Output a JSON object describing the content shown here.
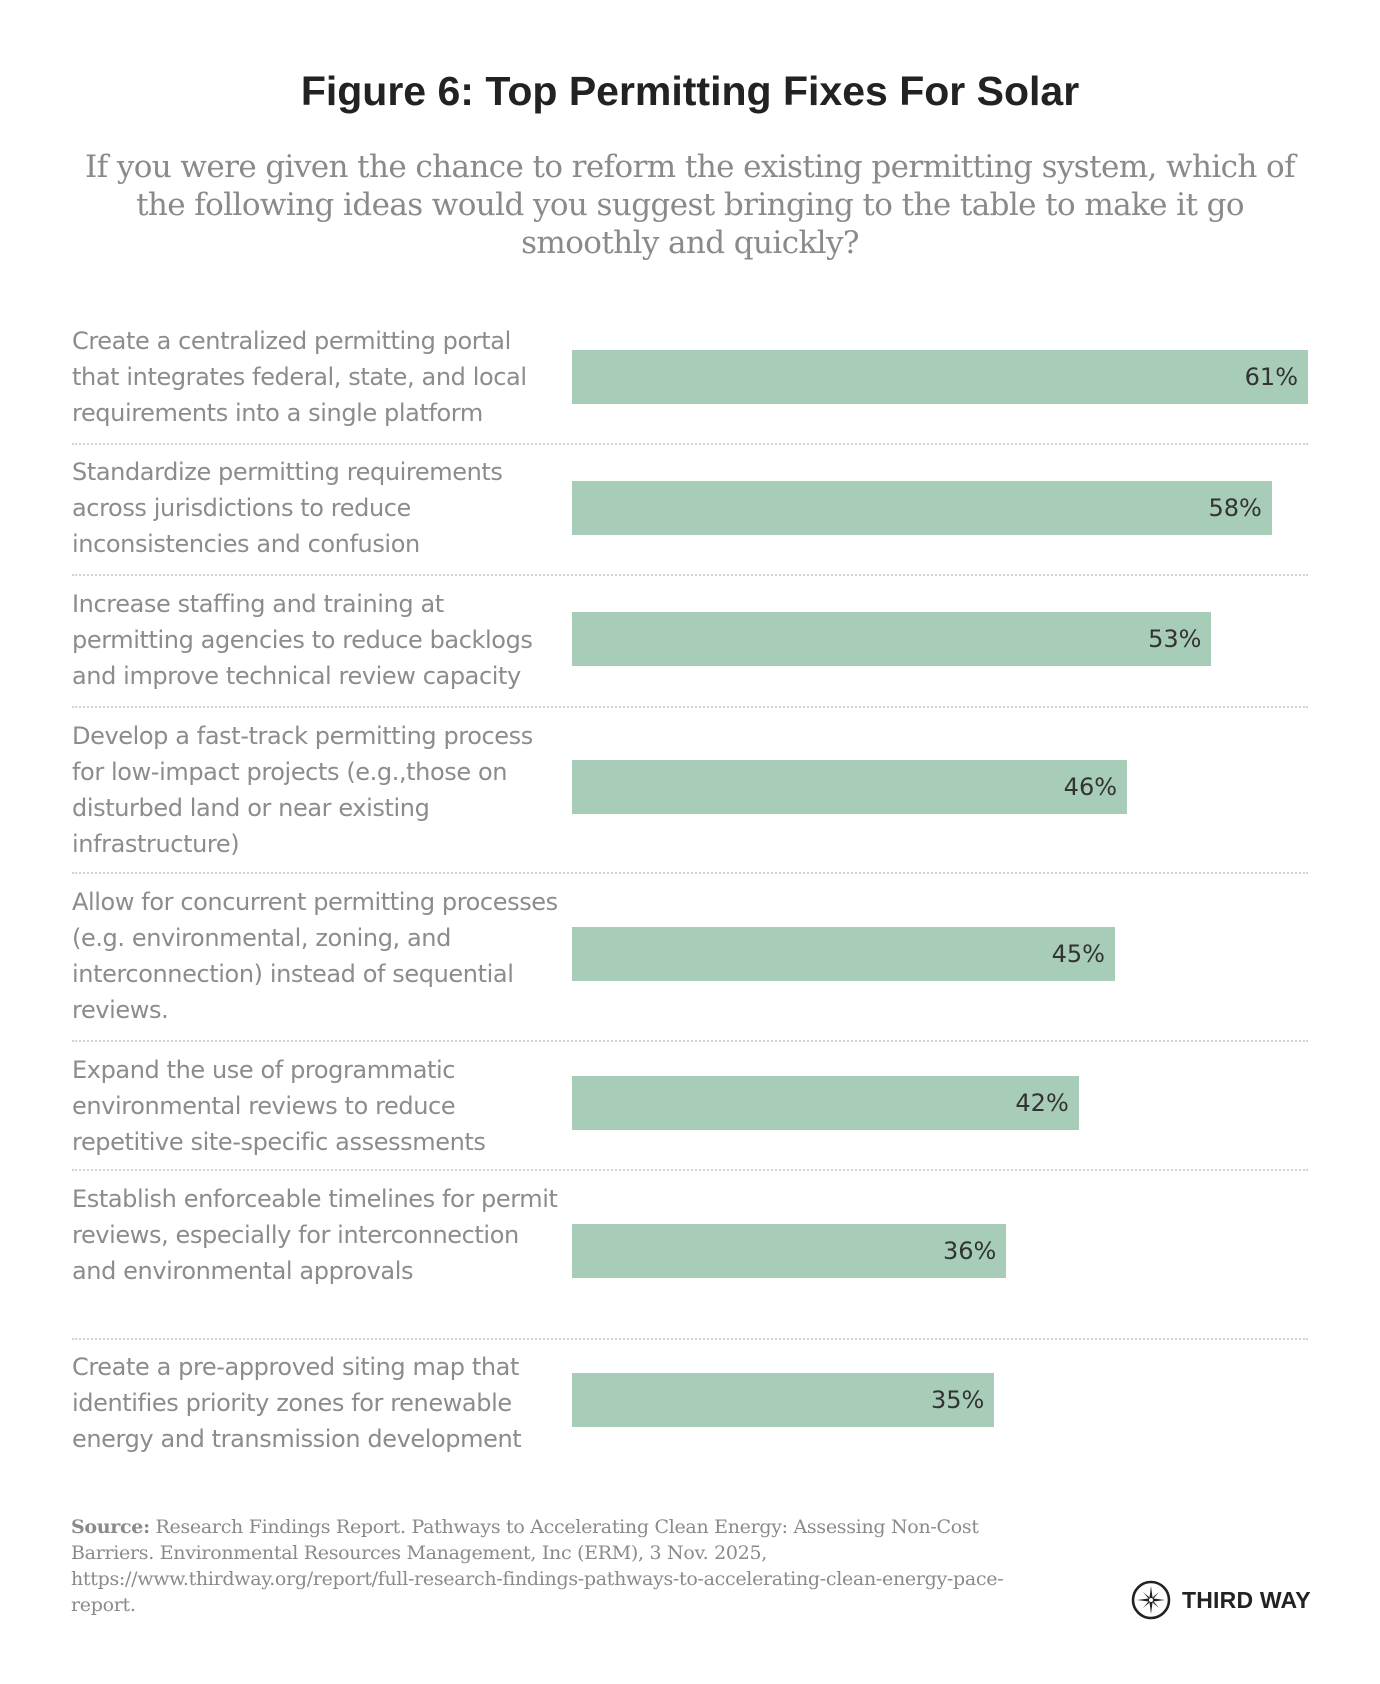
{
  "header": {
    "title": "Figure 6: Top Permitting Fixes For Solar",
    "subtitle": "If you were given the chance to reform the existing permitting system, which of the following ideas would you suggest bringing to the table to make it go smoothly and quickly?"
  },
  "colors": {
    "bar": "#a7cdb8",
    "label_text": "#8c8c8c",
    "value_text": "#333333",
    "title_text": "#222222"
  },
  "chart_data": {
    "type": "bar",
    "orientation": "horizontal",
    "title": "Figure 6: Top Permitting Fixes For Solar",
    "subtitle": "If you were given the chance to reform the existing permitting system, which of the following ideas would you suggest bringing to the table to make it go smoothly and quickly?",
    "xlabel": "",
    "ylabel": "",
    "unit": "%",
    "xlim": [
      0,
      61
    ],
    "grid": false,
    "legend": "none",
    "categories": [
      "Create a centralized permitting portal that integrates federal, state, and local requirements into a single platform",
      "Standardize permitting requirements across jurisdictions to reduce inconsistencies and confusion",
      "Increase staffing and training at permitting agencies to reduce backlogs and improve technical review capacity",
      "Develop a fast-track permitting process for low-impact projects (e.g.,those on disturbed land or near existing infrastructure)",
      "Allow for concurrent permitting processes (e.g. environmental, zoning, and interconnection) instead of sequential reviews.",
      "Expand the use of programmatic environmental reviews to reduce repetitive site-specific assessments",
      "Establish enforceable timelines for permit reviews, especially for interconnection and environmental approvals",
      "Create a pre-approved siting map that identifies priority zones for renewable energy and transmission development"
    ],
    "values": [
      61,
      58,
      53,
      46,
      45,
      42,
      36,
      35
    ],
    "value_labels": [
      "61%",
      "58%",
      "53%",
      "46%",
      "45%",
      "42%",
      "36%",
      "35%"
    ]
  },
  "footer": {
    "source_label": "Source:",
    "source_text": " Research Findings Report. Pathways to Accelerating Clean Energy: Assessing Non-Cost Barriers. Environmental Resources Management, Inc (ERM), 3 Nov. 2025, https://www.thirdway.org/report/full-research-findings-pathways-to-accelerating-clean-energy-pace-report.",
    "logo_icon": "compass-star-icon",
    "logo_text": "THIRD WAY"
  }
}
